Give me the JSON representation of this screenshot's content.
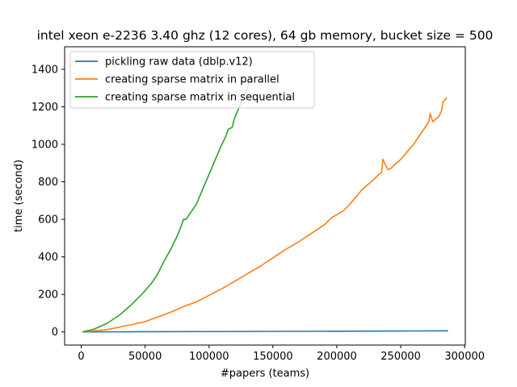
{
  "chart_data": {
    "type": "line",
    "title": "intel xeon e-2236 3.40 ghz (12 cores), 64 gb memory, bucket size = 500",
    "xlabel": "#papers (teams)",
    "ylabel": "time (second)",
    "xlim": [
      -13000,
      300500
    ],
    "ylim": [
      -70,
      1520
    ],
    "xticks": [
      0,
      50000,
      100000,
      150000,
      200000,
      250000,
      300000
    ],
    "yticks": [
      0,
      200,
      400,
      600,
      800,
      1000,
      1200,
      1400
    ],
    "grid": false,
    "legend_position": "top-left",
    "series": [
      {
        "name": "pickling raw data (dblp.v12)",
        "color": "#1f77b4",
        "x": [
          1000,
          50000,
          100000,
          150000,
          200000,
          250000,
          287000
        ],
        "y": [
          0,
          1,
          2,
          3,
          4,
          5,
          6
        ]
      },
      {
        "name": "creating sparse matrix in parallel",
        "color": "#ff7f0e",
        "x": [
          1000,
          20000,
          40000,
          50000,
          60000,
          70000,
          80000,
          90000,
          100000,
          110000,
          120000,
          130000,
          140000,
          150000,
          160000,
          170000,
          180000,
          190000,
          196000,
          200000,
          205000,
          210000,
          215000,
          220000,
          225000,
          230000,
          233000,
          235000,
          236000,
          238000,
          240000,
          242000,
          245000,
          250000,
          255000,
          260000,
          265000,
          268000,
          270000,
          272000,
          273000,
          275000,
          280000,
          282000,
          283000,
          285000,
          286000
        ],
        "y": [
          0,
          12,
          40,
          55,
          80,
          105,
          135,
          160,
          195,
          230,
          270,
          310,
          350,
          395,
          440,
          480,
          525,
          570,
          610,
          625,
          645,
          680,
          720,
          760,
          790,
          820,
          840,
          850,
          920,
          890,
          865,
          870,
          890,
          920,
          960,
          1000,
          1050,
          1080,
          1100,
          1120,
          1165,
          1120,
          1150,
          1180,
          1225,
          1240,
          1250
        ]
      },
      {
        "name": "creating sparse matrix in sequential",
        "color": "#2ca02c",
        "x": [
          1000,
          10000,
          20000,
          30000,
          40000,
          45000,
          48000,
          55000,
          60000,
          62000,
          65000,
          70000,
          75000,
          78000,
          80000,
          82000,
          85000,
          90000,
          95000,
          100000,
          105000,
          110000,
          113000,
          115000,
          118000,
          120000,
          125000,
          130000,
          133000
        ],
        "y": [
          0,
          15,
          45,
          90,
          150,
          185,
          205,
          260,
          310,
          340,
          380,
          440,
          510,
          560,
          600,
          600,
          630,
          680,
          760,
          840,
          920,
          1000,
          1040,
          1080,
          1090,
          1140,
          1220,
          1300,
          1370
        ]
      }
    ]
  }
}
